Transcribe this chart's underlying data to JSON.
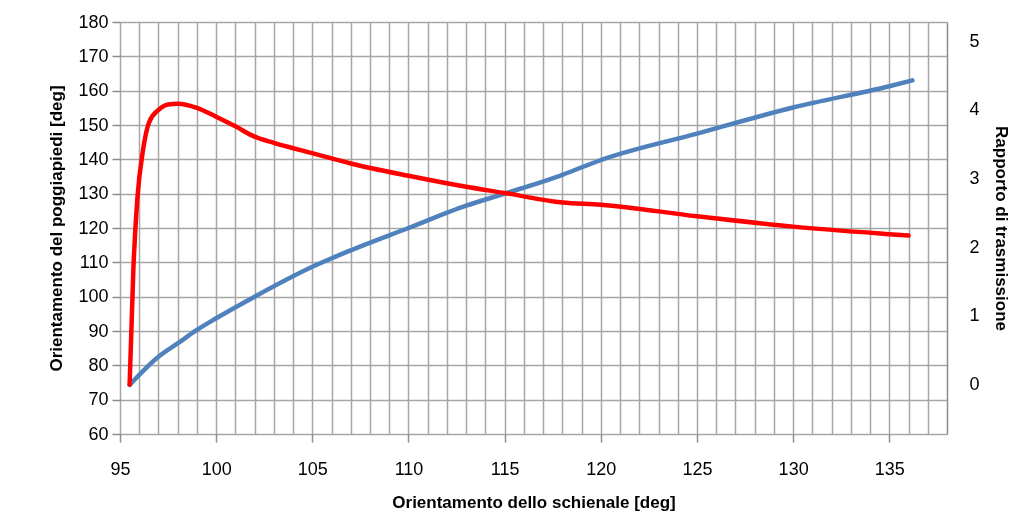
{
  "chart_data": {
    "type": "line",
    "xlabel": "Orientamento dello schienale [deg]",
    "ylabel": "Orientamento del poggiapiedi [deg]",
    "y2label": "Rapporto di trasmissione",
    "xlim": [
      95,
      138
    ],
    "xticks": [
      95,
      {
        "value": 96,
        "label": null
      },
      {
        "value": 97,
        "label": null
      },
      {
        "value": 98,
        "label": null
      },
      {
        "value": 99,
        "label": null
      },
      100,
      {
        "value": 101,
        "label": null
      },
      {
        "value": 102,
        "label": null
      },
      {
        "value": 103,
        "label": null
      },
      {
        "value": 104,
        "label": null
      },
      105,
      {
        "value": 106,
        "label": null
      },
      {
        "value": 107,
        "label": null
      },
      {
        "value": 108,
        "label": null
      },
      {
        "value": 109,
        "label": null
      },
      110,
      {
        "value": 111,
        "label": null
      },
      {
        "value": 112,
        "label": null
      },
      {
        "value": 113,
        "label": null
      },
      {
        "value": 114,
        "label": null
      },
      115,
      {
        "value": 116,
        "label": null
      },
      {
        "value": 117,
        "label": null
      },
      {
        "value": 118,
        "label": null
      },
      {
        "value": 119,
        "label": null
      },
      120,
      {
        "value": 121,
        "label": null
      },
      {
        "value": 122,
        "label": null
      },
      {
        "value": 123,
        "label": null
      },
      {
        "value": 124,
        "label": null
      },
      125,
      {
        "value": 126,
        "label": null
      },
      {
        "value": 127,
        "label": null
      },
      {
        "value": 128,
        "label": null
      },
      {
        "value": 129,
        "label": null
      },
      130,
      {
        "value": 131,
        "label": null
      },
      {
        "value": 132,
        "label": null
      },
      {
        "value": 133,
        "label": null
      },
      {
        "value": 134,
        "label": null
      },
      135,
      {
        "value": 136,
        "label": null
      },
      {
        "value": 137,
        "label": null
      }
    ],
    "ylim": [
      60,
      180
    ],
    "yticks": [
      60,
      70,
      80,
      90,
      100,
      110,
      120,
      130,
      140,
      150,
      160,
      170,
      180
    ],
    "y2lim": [
      -0.72,
      5.28
    ],
    "y2ticks": [
      0,
      1,
      2,
      3,
      4,
      5
    ],
    "grid": true,
    "line_style": "solid",
    "marker": "none",
    "series": [
      {
        "color": "#4f81bd",
        "x": [
          95.5,
          97,
          98,
          99,
          100,
          102,
          105,
          107,
          110,
          113,
          115,
          118,
          120,
          125,
          130,
          135,
          136.2
        ],
        "values": [
          74.3,
          82.5,
          86.4,
          90.3,
          93.7,
          100,
          108.7,
          113.5,
          120,
          126.5,
          130,
          135.5,
          139.8,
          147.5,
          155.1,
          161.3,
          163
        ]
      },
      {
        "color": "#ff0000",
        "axis": "y2",
        "x": [
          95.5,
          95.7,
          95.9,
          96.2,
          96.5,
          97,
          97.5,
          98,
          99,
          100,
          101,
          102,
          103,
          105,
          107,
          110,
          113,
          115,
          118,
          120,
          125,
          130,
          135,
          136
        ],
        "values": [
          0,
          1.72,
          2.7,
          3.42,
          3.81,
          4.0,
          4.08,
          4.09,
          4.03,
          3.9,
          3.76,
          3.61,
          3.52,
          3.37,
          3.22,
          3.04,
          2.88,
          2.79,
          2.65,
          2.62,
          2.45,
          2.3,
          2.19,
          2.17
        ]
      }
    ]
  }
}
